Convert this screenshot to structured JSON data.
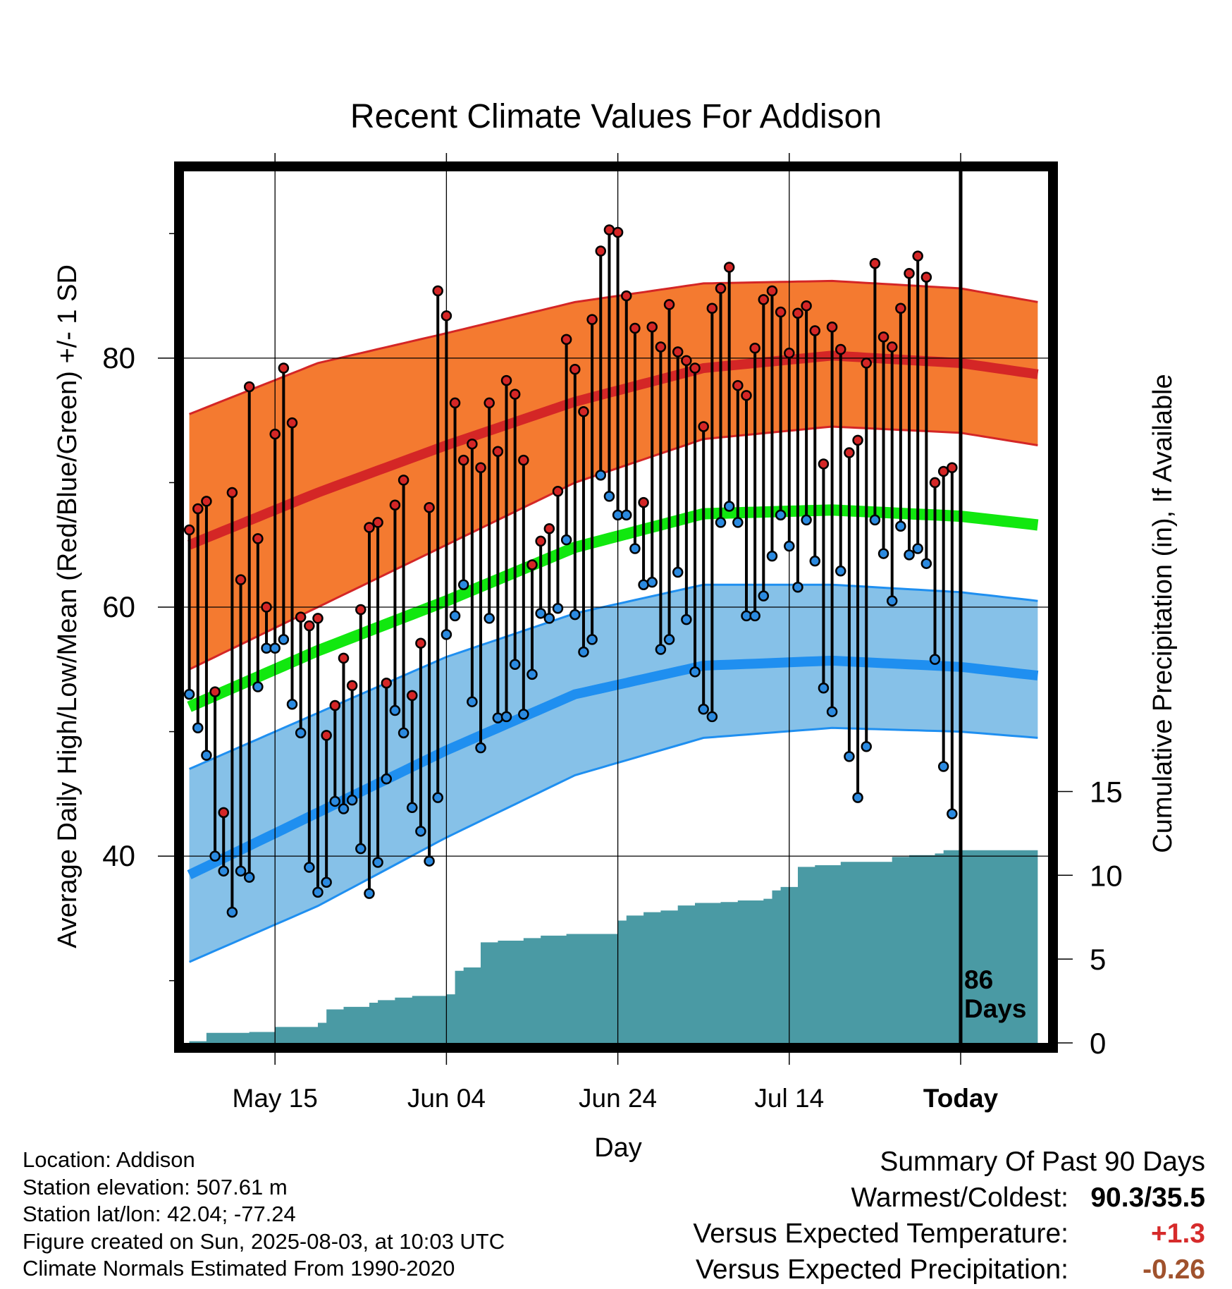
{
  "chart_data": {
    "type": "line",
    "title": "Recent Climate Values For Addison",
    "xlabel": "Day",
    "ylabel": "Average Daily High/Low/Mean (Red/Blue/Green) +/- 1 SD",
    "y2label": "Cumulative Precipitation (in), If Available",
    "x_tick_labels": [
      "May 15",
      "Jun 04",
      "Jun 24",
      "Jul 14",
      "Today"
    ],
    "y_ticks": [
      "40",
      "60",
      "80"
    ],
    "y2_ticks": [
      "0",
      "5",
      "10",
      "15"
    ],
    "ylim": [
      25,
      95
    ],
    "y2lim": [
      0,
      52
    ],
    "days_label": [
      "86",
      "Days"
    ],
    "grid": true,
    "colors": {
      "high_band": "#f47a30",
      "high_mean": "#d42626",
      "low_band": "#86c1e8",
      "low_mean": "#1f8ff0",
      "mean_line": "#11e80f",
      "precip": "#4a9aa4",
      "high_dot": "#d42626",
      "low_dot": "#2b8ae0"
    },
    "normals": {
      "x_days": [
        -90,
        -75,
        -60,
        -45,
        -30,
        -15,
        0,
        9
      ],
      "high_mean": [
        65.0,
        69.2,
        73.0,
        76.5,
        79.2,
        80.2,
        79.6,
        78.7
      ],
      "high_sd_upper": [
        75.5,
        79.6,
        82.0,
        84.5,
        86.0,
        86.2,
        85.6,
        84.5
      ],
      "high_sd_lower": [
        55.0,
        60.0,
        65.0,
        70.0,
        73.5,
        74.5,
        74.0,
        73.0
      ],
      "low_mean": [
        38.5,
        43.5,
        48.5,
        53.0,
        55.3,
        55.7,
        55.2,
        54.5
      ],
      "low_sd_upper": [
        47.0,
        51.5,
        56.0,
        59.5,
        61.8,
        61.8,
        61.2,
        60.5
      ],
      "low_sd_lower": [
        31.5,
        36.0,
        41.5,
        46.5,
        49.5,
        50.3,
        50.0,
        49.5
      ],
      "mean": [
        52.0,
        56.5,
        60.5,
        64.8,
        67.5,
        67.8,
        67.3,
        66.6
      ]
    },
    "series": [
      {
        "name": "High",
        "x_days": [
          -90,
          -89,
          -88,
          -87,
          -86,
          -85,
          -84,
          -83,
          -82,
          -81,
          -80,
          -79,
          -78,
          -77,
          -76,
          -75,
          -74,
          -73,
          -72,
          -71,
          -70,
          -69,
          -68,
          -67,
          -66,
          -65,
          -64,
          -63,
          -62,
          -61,
          -60,
          -59,
          -58,
          -57,
          -56,
          -55,
          -54,
          -53,
          -52,
          -51,
          -50,
          -49,
          -48,
          -47,
          -46,
          -45,
          -44,
          -43,
          -42,
          -41,
          -40,
          -39,
          -38,
          -37,
          -36,
          -35,
          -34,
          -33,
          -32,
          -31,
          -30,
          -29,
          -28,
          -27,
          -26,
          -25,
          -24,
          -23,
          -22,
          -21,
          -20,
          -19,
          -18,
          -17,
          -16,
          -15,
          -14,
          -13,
          -12,
          -11,
          -10,
          -9,
          -8,
          -7,
          -6,
          -5,
          -4,
          -3,
          -2,
          -1
        ],
        "values": [
          66.2,
          67.9,
          68.5,
          53.2,
          43.5,
          69.2,
          62.2,
          77.7,
          65.5,
          60.0,
          73.9,
          79.2,
          74.8,
          59.2,
          58.5,
          59.1,
          49.7,
          52.1,
          55.9,
          53.7,
          59.8,
          66.4,
          66.8,
          53.9,
          68.2,
          70.2,
          52.9,
          57.1,
          68.0,
          85.4,
          83.4,
          76.4,
          71.8,
          73.1,
          71.2,
          76.4,
          72.5,
          78.2,
          77.1,
          71.8,
          63.4,
          65.3,
          66.3,
          69.3,
          81.5,
          79.1,
          75.7,
          83.1,
          88.6,
          90.3,
          90.1,
          85.0,
          82.4,
          68.4,
          82.5,
          80.9,
          84.3,
          80.5,
          79.8,
          79.2,
          74.5,
          84.0,
          85.6,
          87.3,
          77.8,
          77.0,
          80.8,
          84.7,
          85.4,
          83.7,
          80.4,
          83.6,
          84.2,
          82.2,
          71.5,
          82.5,
          80.7,
          72.4,
          73.4,
          79.6,
          87.6,
          81.7,
          80.9,
          84.0,
          86.8,
          88.2,
          86.5,
          70.0,
          70.9,
          71.2
        ]
      },
      {
        "name": "Low",
        "x_days": [
          -90,
          -89,
          -88,
          -87,
          -86,
          -85,
          -84,
          -83,
          -82,
          -81,
          -80,
          -79,
          -78,
          -77,
          -76,
          -75,
          -74,
          -73,
          -72,
          -71,
          -70,
          -69,
          -68,
          -67,
          -66,
          -65,
          -64,
          -63,
          -62,
          -61,
          -60,
          -59,
          -58,
          -57,
          -56,
          -55,
          -54,
          -53,
          -52,
          -51,
          -50,
          -49,
          -48,
          -47,
          -46,
          -45,
          -44,
          -43,
          -42,
          -41,
          -40,
          -39,
          -38,
          -37,
          -36,
          -35,
          -34,
          -33,
          -32,
          -31,
          -30,
          -29,
          -28,
          -27,
          -26,
          -25,
          -24,
          -23,
          -22,
          -21,
          -20,
          -19,
          -18,
          -17,
          -16,
          -15,
          -14,
          -13,
          -12,
          -11,
          -10,
          -9,
          -8,
          -7,
          -6,
          -5,
          -4,
          -3,
          -2,
          -1
        ],
        "values": [
          53.0,
          50.3,
          48.1,
          40.0,
          38.8,
          35.5,
          38.8,
          38.3,
          53.6,
          56.7,
          56.7,
          57.4,
          52.2,
          49.9,
          39.1,
          37.1,
          37.9,
          44.4,
          43.8,
          44.5,
          40.6,
          37.0,
          39.5,
          46.2,
          51.7,
          49.9,
          43.9,
          42.0,
          39.6,
          44.7,
          57.8,
          59.3,
          61.8,
          52.4,
          48.7,
          59.1,
          51.1,
          51.2,
          55.4,
          51.4,
          54.6,
          59.5,
          59.1,
          59.9,
          65.4,
          59.4,
          56.4,
          57.4,
          70.6,
          68.9,
          67.4,
          67.4,
          64.7,
          61.8,
          62.0,
          56.6,
          57.4,
          62.8,
          59.0,
          54.8,
          51.8,
          51.2,
          66.8,
          68.1,
          66.8,
          59.3,
          59.3,
          60.9,
          64.1,
          67.4,
          64.9,
          61.6,
          67.0,
          63.7,
          53.5,
          51.6,
          62.9,
          48.0,
          44.7,
          48.8,
          67.0,
          64.3,
          60.5,
          66.5,
          64.2,
          64.7,
          63.5,
          55.8,
          47.2,
          43.4
        ]
      },
      {
        "name": "Cumulative Precipitation",
        "x_days": [
          -90,
          -88,
          -86,
          -83,
          -80,
          -76,
          -75,
          -74,
          -72,
          -70,
          -69,
          -68,
          -66,
          -64,
          -61,
          -60,
          -59,
          -58,
          -56,
          -54,
          -51,
          -49,
          -46,
          -42,
          -40,
          -39,
          -37,
          -35,
          -33,
          -31,
          -28,
          -26,
          -25,
          -24,
          -23,
          -22,
          -21,
          -19,
          -17,
          -14,
          -12,
          -11,
          -10,
          -9,
          -8,
          -6,
          -5,
          -3,
          -2,
          -1,
          0,
          9
        ],
        "values": [
          0.1,
          0.6,
          0.6,
          0.65,
          0.95,
          0.95,
          1.2,
          2.0,
          2.15,
          2.15,
          2.4,
          2.55,
          2.7,
          2.8,
          2.8,
          2.9,
          4.3,
          4.5,
          6.0,
          6.1,
          6.25,
          6.4,
          6.5,
          6.5,
          7.3,
          7.6,
          7.8,
          7.9,
          8.2,
          8.35,
          8.4,
          8.5,
          8.5,
          8.5,
          8.6,
          9.1,
          9.3,
          10.5,
          10.6,
          10.8,
          10.8,
          10.8,
          10.8,
          10.8,
          11.1,
          11.2,
          11.2,
          11.3,
          11.5,
          11.5,
          11.5,
          11.5
        ]
      }
    ]
  },
  "info": {
    "location": "Location: Addison",
    "elevation": "Station elevation: 507.61 m",
    "latlon": "Station lat/lon: 42.04; -77.24",
    "created": "Figure created on Sun, 2025-08-03, at 10:03 UTC",
    "normals": "Climate Normals Estimated From 1990-2020"
  },
  "summary": {
    "heading": "Summary Of Past 90 Days",
    "warm_label": "Warmest/Coldest:",
    "warm_value": "90.3/35.5",
    "temp_label": "Versus Expected Temperature:",
    "temp_value": "+1.3",
    "precip_label": "Versus Expected Precipitation:",
    "precip_value": "-0.26"
  }
}
